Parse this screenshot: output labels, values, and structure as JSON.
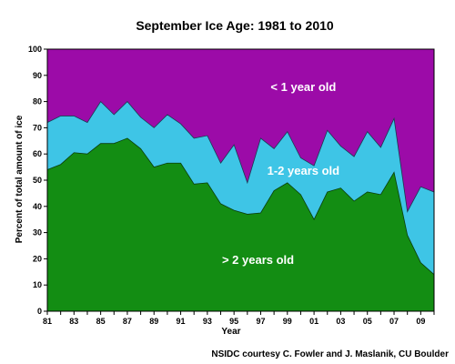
{
  "chart_data": {
    "type": "area",
    "title": "September Ice Age: 1981 to 2010",
    "xlabel": "Year",
    "ylabel": "Percent of total amount of ice",
    "xlim": [
      1981,
      2010
    ],
    "ylim": [
      0,
      100
    ],
    "yticks": [
      0,
      10,
      20,
      30,
      40,
      50,
      60,
      70,
      80,
      90,
      100
    ],
    "xtick_labels": [
      "81",
      "83",
      "85",
      "87",
      "89",
      "91",
      "93",
      "95",
      "97",
      "99",
      "01",
      "03",
      "05",
      "07",
      "09"
    ],
    "stacking": "cumulative",
    "x": [
      1981,
      1982,
      1983,
      1984,
      1985,
      1986,
      1987,
      1988,
      1989,
      1990,
      1991,
      1992,
      1993,
      1994,
      1995,
      1996,
      1997,
      1998,
      1999,
      2000,
      2001,
      2002,
      2003,
      2004,
      2005,
      2006,
      2007,
      2008,
      2009,
      2010
    ],
    "series": [
      {
        "name": "> 2 years old",
        "color": "#138d13",
        "values": [
          54,
          56,
          60.5,
          60,
          64,
          64,
          66,
          62,
          55,
          56.5,
          56.5,
          48.5,
          49,
          41,
          38.5,
          37,
          37.5,
          46,
          49,
          44.5,
          35,
          45.5,
          47,
          42,
          45.5,
          44.5,
          53,
          29,
          18.5,
          14
        ]
      },
      {
        "name": "1-2 years old",
        "color": "#3ec5e6",
        "cumulative_top": [
          72,
          74.5,
          74.5,
          72,
          80,
          75,
          80,
          74,
          70,
          75,
          71.5,
          66,
          67,
          56.5,
          63.5,
          49,
          66,
          62,
          68.5,
          58.5,
          55.5,
          69,
          63,
          59,
          68.5,
          62.5,
          73.5,
          38,
          47.5,
          45.5
        ]
      },
      {
        "name": "< 1 year old",
        "color": "#9c0ba8",
        "cumulative_top": [
          100,
          100,
          100,
          100,
          100,
          100,
          100,
          100,
          100,
          100,
          100,
          100,
          100,
          100,
          100,
          100,
          100,
          100,
          100,
          100,
          100,
          100,
          100,
          100,
          100,
          100,
          100,
          100,
          100,
          100
        ]
      }
    ],
    "credit": "NSIDC courtesy C. Fowler and J. Maslanik, CU Boulder",
    "legend": "inline"
  }
}
